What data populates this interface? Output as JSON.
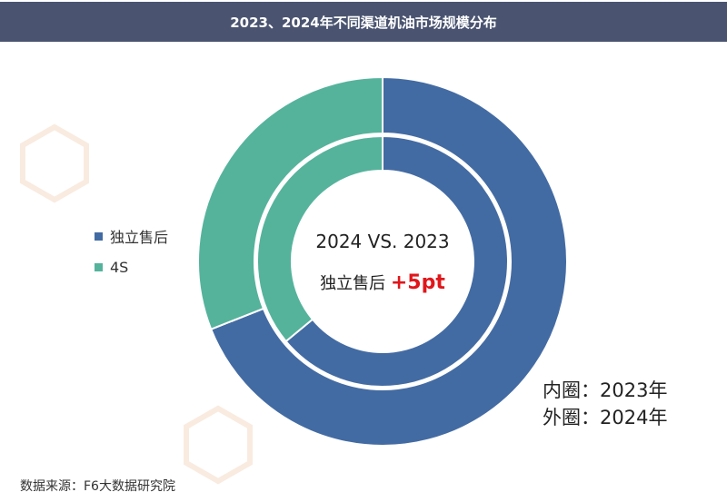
{
  "title": "2023、2024年不同渠道机油市场规模分布",
  "watermark": "F6大数据研究院",
  "chart_data": {
    "type": "pie",
    "title": "2023、2024年不同渠道机油市场规模分布",
    "categories": [
      "独立售后",
      "4S"
    ],
    "colors": [
      "#436ba3",
      "#55b39c"
    ],
    "series": [
      {
        "name": "内圈：2023年",
        "values": [
          64,
          36
        ]
      },
      {
        "name": "外圈：2024年",
        "values": [
          69,
          31
        ]
      }
    ],
    "legend": "left"
  },
  "center": {
    "line1": "2024 VS. 2023",
    "label": "独立售后",
    "delta": "+5pt"
  },
  "annotation": {
    "inner": "内圈：2023年",
    "outer": "外圈：2024年"
  },
  "source": "数据来源：F6大数据研究院"
}
